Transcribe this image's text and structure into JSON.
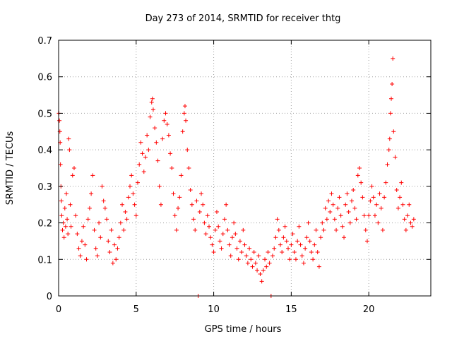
{
  "chart_data": {
    "type": "scatter",
    "title": "Day 273 of 2014, SRMTID for receiver thtg",
    "xlabel": "GPS time / hours",
    "ylabel": "SRMTID / TECUs",
    "xlim": [
      0,
      24
    ],
    "ylim": [
      0,
      0.7
    ],
    "xticks": [
      0,
      5,
      10,
      15,
      20
    ],
    "xtick_labels": [
      "0",
      "5",
      "10",
      "15",
      "20"
    ],
    "yticks": [
      0,
      0.1,
      0.2,
      0.3,
      0.4,
      0.5,
      0.6,
      0.7
    ],
    "ytick_labels": [
      "0",
      "0.1",
      "0.2",
      "0.3",
      "0.4",
      "0.5",
      "0.6",
      "0.7"
    ],
    "grid": true,
    "marker": "plus",
    "marker_color": "#ff0000",
    "series": [
      {
        "name": "SRMTID",
        "points": [
          [
            0.02,
            0.5
          ],
          [
            0.05,
            0.48
          ],
          [
            0.08,
            0.45
          ],
          [
            0.1,
            0.42
          ],
          [
            0.12,
            0.36
          ],
          [
            0.15,
            0.3
          ],
          [
            0.18,
            0.26
          ],
          [
            0.2,
            0.22
          ],
          [
            0.25,
            0.18
          ],
          [
            0.3,
            0.2
          ],
          [
            0.35,
            0.16
          ],
          [
            0.4,
            0.24
          ],
          [
            0.45,
            0.19
          ],
          [
            0.5,
            0.28
          ],
          [
            0.55,
            0.21
          ],
          [
            0.6,
            0.17
          ],
          [
            0.65,
            0.43
          ],
          [
            0.7,
            0.4
          ],
          [
            0.75,
            0.25
          ],
          [
            0.8,
            0.19
          ],
          [
            0.9,
            0.33
          ],
          [
            1.0,
            0.35
          ],
          [
            1.1,
            0.22
          ],
          [
            1.2,
            0.17
          ],
          [
            1.3,
            0.13
          ],
          [
            1.4,
            0.11
          ],
          [
            1.5,
            0.15
          ],
          [
            1.6,
            0.19
          ],
          [
            1.7,
            0.14
          ],
          [
            1.8,
            0.1
          ],
          [
            1.9,
            0.21
          ],
          [
            2.0,
            0.24
          ],
          [
            2.1,
            0.28
          ],
          [
            2.2,
            0.33
          ],
          [
            2.3,
            0.18
          ],
          [
            2.4,
            0.13
          ],
          [
            2.5,
            0.11
          ],
          [
            2.6,
            0.2
          ],
          [
            2.7,
            0.16
          ],
          [
            2.8,
            0.3
          ],
          [
            2.9,
            0.26
          ],
          [
            3.0,
            0.24
          ],
          [
            3.1,
            0.21
          ],
          [
            3.2,
            0.15
          ],
          [
            3.3,
            0.12
          ],
          [
            3.4,
            0.18
          ],
          [
            3.5,
            0.09
          ],
          [
            3.6,
            0.14
          ],
          [
            3.7,
            0.1
          ],
          [
            3.8,
            0.13
          ],
          [
            3.9,
            0.16
          ],
          [
            4.0,
            0.2
          ],
          [
            4.1,
            0.25
          ],
          [
            4.2,
            0.18
          ],
          [
            4.3,
            0.23
          ],
          [
            4.4,
            0.21
          ],
          [
            4.5,
            0.27
          ],
          [
            4.6,
            0.3
          ],
          [
            4.7,
            0.33
          ],
          [
            4.8,
            0.28
          ],
          [
            4.9,
            0.25
          ],
          [
            5.0,
            0.22
          ],
          [
            5.1,
            0.31
          ],
          [
            5.2,
            0.36
          ],
          [
            5.3,
            0.42
          ],
          [
            5.4,
            0.39
          ],
          [
            5.5,
            0.34
          ],
          [
            5.6,
            0.38
          ],
          [
            5.7,
            0.44
          ],
          [
            5.8,
            0.4
          ],
          [
            5.9,
            0.49
          ],
          [
            6.0,
            0.53
          ],
          [
            6.05,
            0.54
          ],
          [
            6.1,
            0.51
          ],
          [
            6.2,
            0.46
          ],
          [
            6.3,
            0.42
          ],
          [
            6.4,
            0.37
          ],
          [
            6.5,
            0.3
          ],
          [
            6.6,
            0.25
          ],
          [
            6.7,
            0.43
          ],
          [
            6.8,
            0.48
          ],
          [
            6.9,
            0.5
          ],
          [
            7.0,
            0.47
          ],
          [
            7.1,
            0.44
          ],
          [
            7.2,
            0.39
          ],
          [
            7.3,
            0.35
          ],
          [
            7.4,
            0.28
          ],
          [
            7.5,
            0.22
          ],
          [
            7.6,
            0.18
          ],
          [
            7.7,
            0.24
          ],
          [
            7.8,
            0.27
          ],
          [
            7.9,
            0.33
          ],
          [
            8.0,
            0.45
          ],
          [
            8.1,
            0.5
          ],
          [
            8.15,
            0.52
          ],
          [
            8.2,
            0.48
          ],
          [
            8.3,
            0.4
          ],
          [
            8.4,
            0.35
          ],
          [
            8.5,
            0.29
          ],
          [
            8.6,
            0.25
          ],
          [
            8.7,
            0.21
          ],
          [
            8.8,
            0.18
          ],
          [
            8.9,
            0.26
          ],
          [
            9.0,
            0.0
          ],
          [
            9.1,
            0.23
          ],
          [
            9.2,
            0.28
          ],
          [
            9.3,
            0.25
          ],
          [
            9.4,
            0.2
          ],
          [
            9.5,
            0.17
          ],
          [
            9.6,
            0.22
          ],
          [
            9.7,
            0.19
          ],
          [
            9.8,
            0.16
          ],
          [
            9.9,
            0.14
          ],
          [
            10.0,
            0.12
          ],
          [
            10.1,
            0.18
          ],
          [
            10.2,
            0.23
          ],
          [
            10.3,
            0.19
          ],
          [
            10.4,
            0.15
          ],
          [
            10.5,
            0.13
          ],
          [
            10.6,
            0.17
          ],
          [
            10.7,
            0.21
          ],
          [
            10.8,
            0.25
          ],
          [
            10.9,
            0.18
          ],
          [
            11.0,
            0.14
          ],
          [
            11.1,
            0.11
          ],
          [
            11.2,
            0.16
          ],
          [
            11.3,
            0.2
          ],
          [
            11.4,
            0.17
          ],
          [
            11.5,
            0.13
          ],
          [
            11.6,
            0.1
          ],
          [
            11.7,
            0.15
          ],
          [
            11.8,
            0.12
          ],
          [
            11.9,
            0.18
          ],
          [
            12.0,
            0.14
          ],
          [
            12.1,
            0.11
          ],
          [
            12.2,
            0.09
          ],
          [
            12.3,
            0.13
          ],
          [
            12.4,
            0.1
          ],
          [
            12.5,
            0.08
          ],
          [
            12.6,
            0.12
          ],
          [
            12.7,
            0.09
          ],
          [
            12.8,
            0.07
          ],
          [
            12.9,
            0.11
          ],
          [
            13.0,
            0.06
          ],
          [
            13.1,
            0.04
          ],
          [
            13.2,
            0.07
          ],
          [
            13.3,
            0.1
          ],
          [
            13.4,
            0.08
          ],
          [
            13.5,
            0.12
          ],
          [
            13.6,
            0.09
          ],
          [
            13.7,
            0.0
          ],
          [
            13.8,
            0.11
          ],
          [
            13.9,
            0.13
          ],
          [
            14.0,
            0.16
          ],
          [
            14.1,
            0.21
          ],
          [
            14.2,
            0.18
          ],
          [
            14.3,
            0.14
          ],
          [
            14.4,
            0.12
          ],
          [
            14.5,
            0.16
          ],
          [
            14.6,
            0.19
          ],
          [
            14.7,
            0.15
          ],
          [
            14.8,
            0.13
          ],
          [
            14.9,
            0.1
          ],
          [
            15.0,
            0.14
          ],
          [
            15.1,
            0.17
          ],
          [
            15.2,
            0.12
          ],
          [
            15.3,
            0.1
          ],
          [
            15.4,
            0.15
          ],
          [
            15.5,
            0.19
          ],
          [
            15.6,
            0.14
          ],
          [
            15.7,
            0.11
          ],
          [
            15.8,
            0.09
          ],
          [
            15.9,
            0.13
          ],
          [
            16.0,
            0.16
          ],
          [
            16.1,
            0.2
          ],
          [
            16.2,
            0.15
          ],
          [
            16.3,
            0.12
          ],
          [
            16.4,
            0.1
          ],
          [
            16.5,
            0.14
          ],
          [
            16.6,
            0.18
          ],
          [
            16.7,
            0.12
          ],
          [
            16.8,
            0.08
          ],
          [
            16.9,
            0.16
          ],
          [
            17.0,
            0.2
          ],
          [
            17.1,
            0.18
          ],
          [
            17.2,
            0.24
          ],
          [
            17.3,
            0.21
          ],
          [
            17.4,
            0.26
          ],
          [
            17.5,
            0.23
          ],
          [
            17.6,
            0.28
          ],
          [
            17.7,
            0.25
          ],
          [
            17.8,
            0.21
          ],
          [
            17.9,
            0.18
          ],
          [
            18.0,
            0.24
          ],
          [
            18.1,
            0.27
          ],
          [
            18.2,
            0.22
          ],
          [
            18.3,
            0.19
          ],
          [
            18.4,
            0.16
          ],
          [
            18.5,
            0.25
          ],
          [
            18.6,
            0.28
          ],
          [
            18.7,
            0.23
          ],
          [
            18.8,
            0.2
          ],
          [
            18.9,
            0.26
          ],
          [
            19.0,
            0.29
          ],
          [
            19.1,
            0.24
          ],
          [
            19.2,
            0.21
          ],
          [
            19.3,
            0.33
          ],
          [
            19.4,
            0.35
          ],
          [
            19.5,
            0.31
          ],
          [
            19.6,
            0.27
          ],
          [
            19.7,
            0.22
          ],
          [
            19.8,
            0.18
          ],
          [
            19.9,
            0.15
          ],
          [
            20.0,
            0.22
          ],
          [
            20.1,
            0.26
          ],
          [
            20.2,
            0.3
          ],
          [
            20.3,
            0.27
          ],
          [
            20.4,
            0.22
          ],
          [
            20.5,
            0.25
          ],
          [
            20.6,
            0.2
          ],
          [
            20.7,
            0.28
          ],
          [
            20.8,
            0.24
          ],
          [
            20.9,
            0.18
          ],
          [
            21.0,
            0.27
          ],
          [
            21.1,
            0.31
          ],
          [
            21.2,
            0.36
          ],
          [
            21.3,
            0.4
          ],
          [
            21.35,
            0.43
          ],
          [
            21.4,
            0.5
          ],
          [
            21.45,
            0.54
          ],
          [
            21.5,
            0.58
          ],
          [
            21.55,
            0.65
          ],
          [
            21.6,
            0.45
          ],
          [
            21.7,
            0.38
          ],
          [
            21.8,
            0.29
          ],
          [
            21.9,
            0.24
          ],
          [
            22.0,
            0.27
          ],
          [
            22.1,
            0.31
          ],
          [
            22.2,
            0.25
          ],
          [
            22.3,
            0.21
          ],
          [
            22.4,
            0.18
          ],
          [
            22.5,
            0.22
          ],
          [
            22.6,
            0.25
          ],
          [
            22.7,
            0.2
          ],
          [
            22.8,
            0.19
          ],
          [
            22.9,
            0.21
          ]
        ]
      }
    ]
  }
}
